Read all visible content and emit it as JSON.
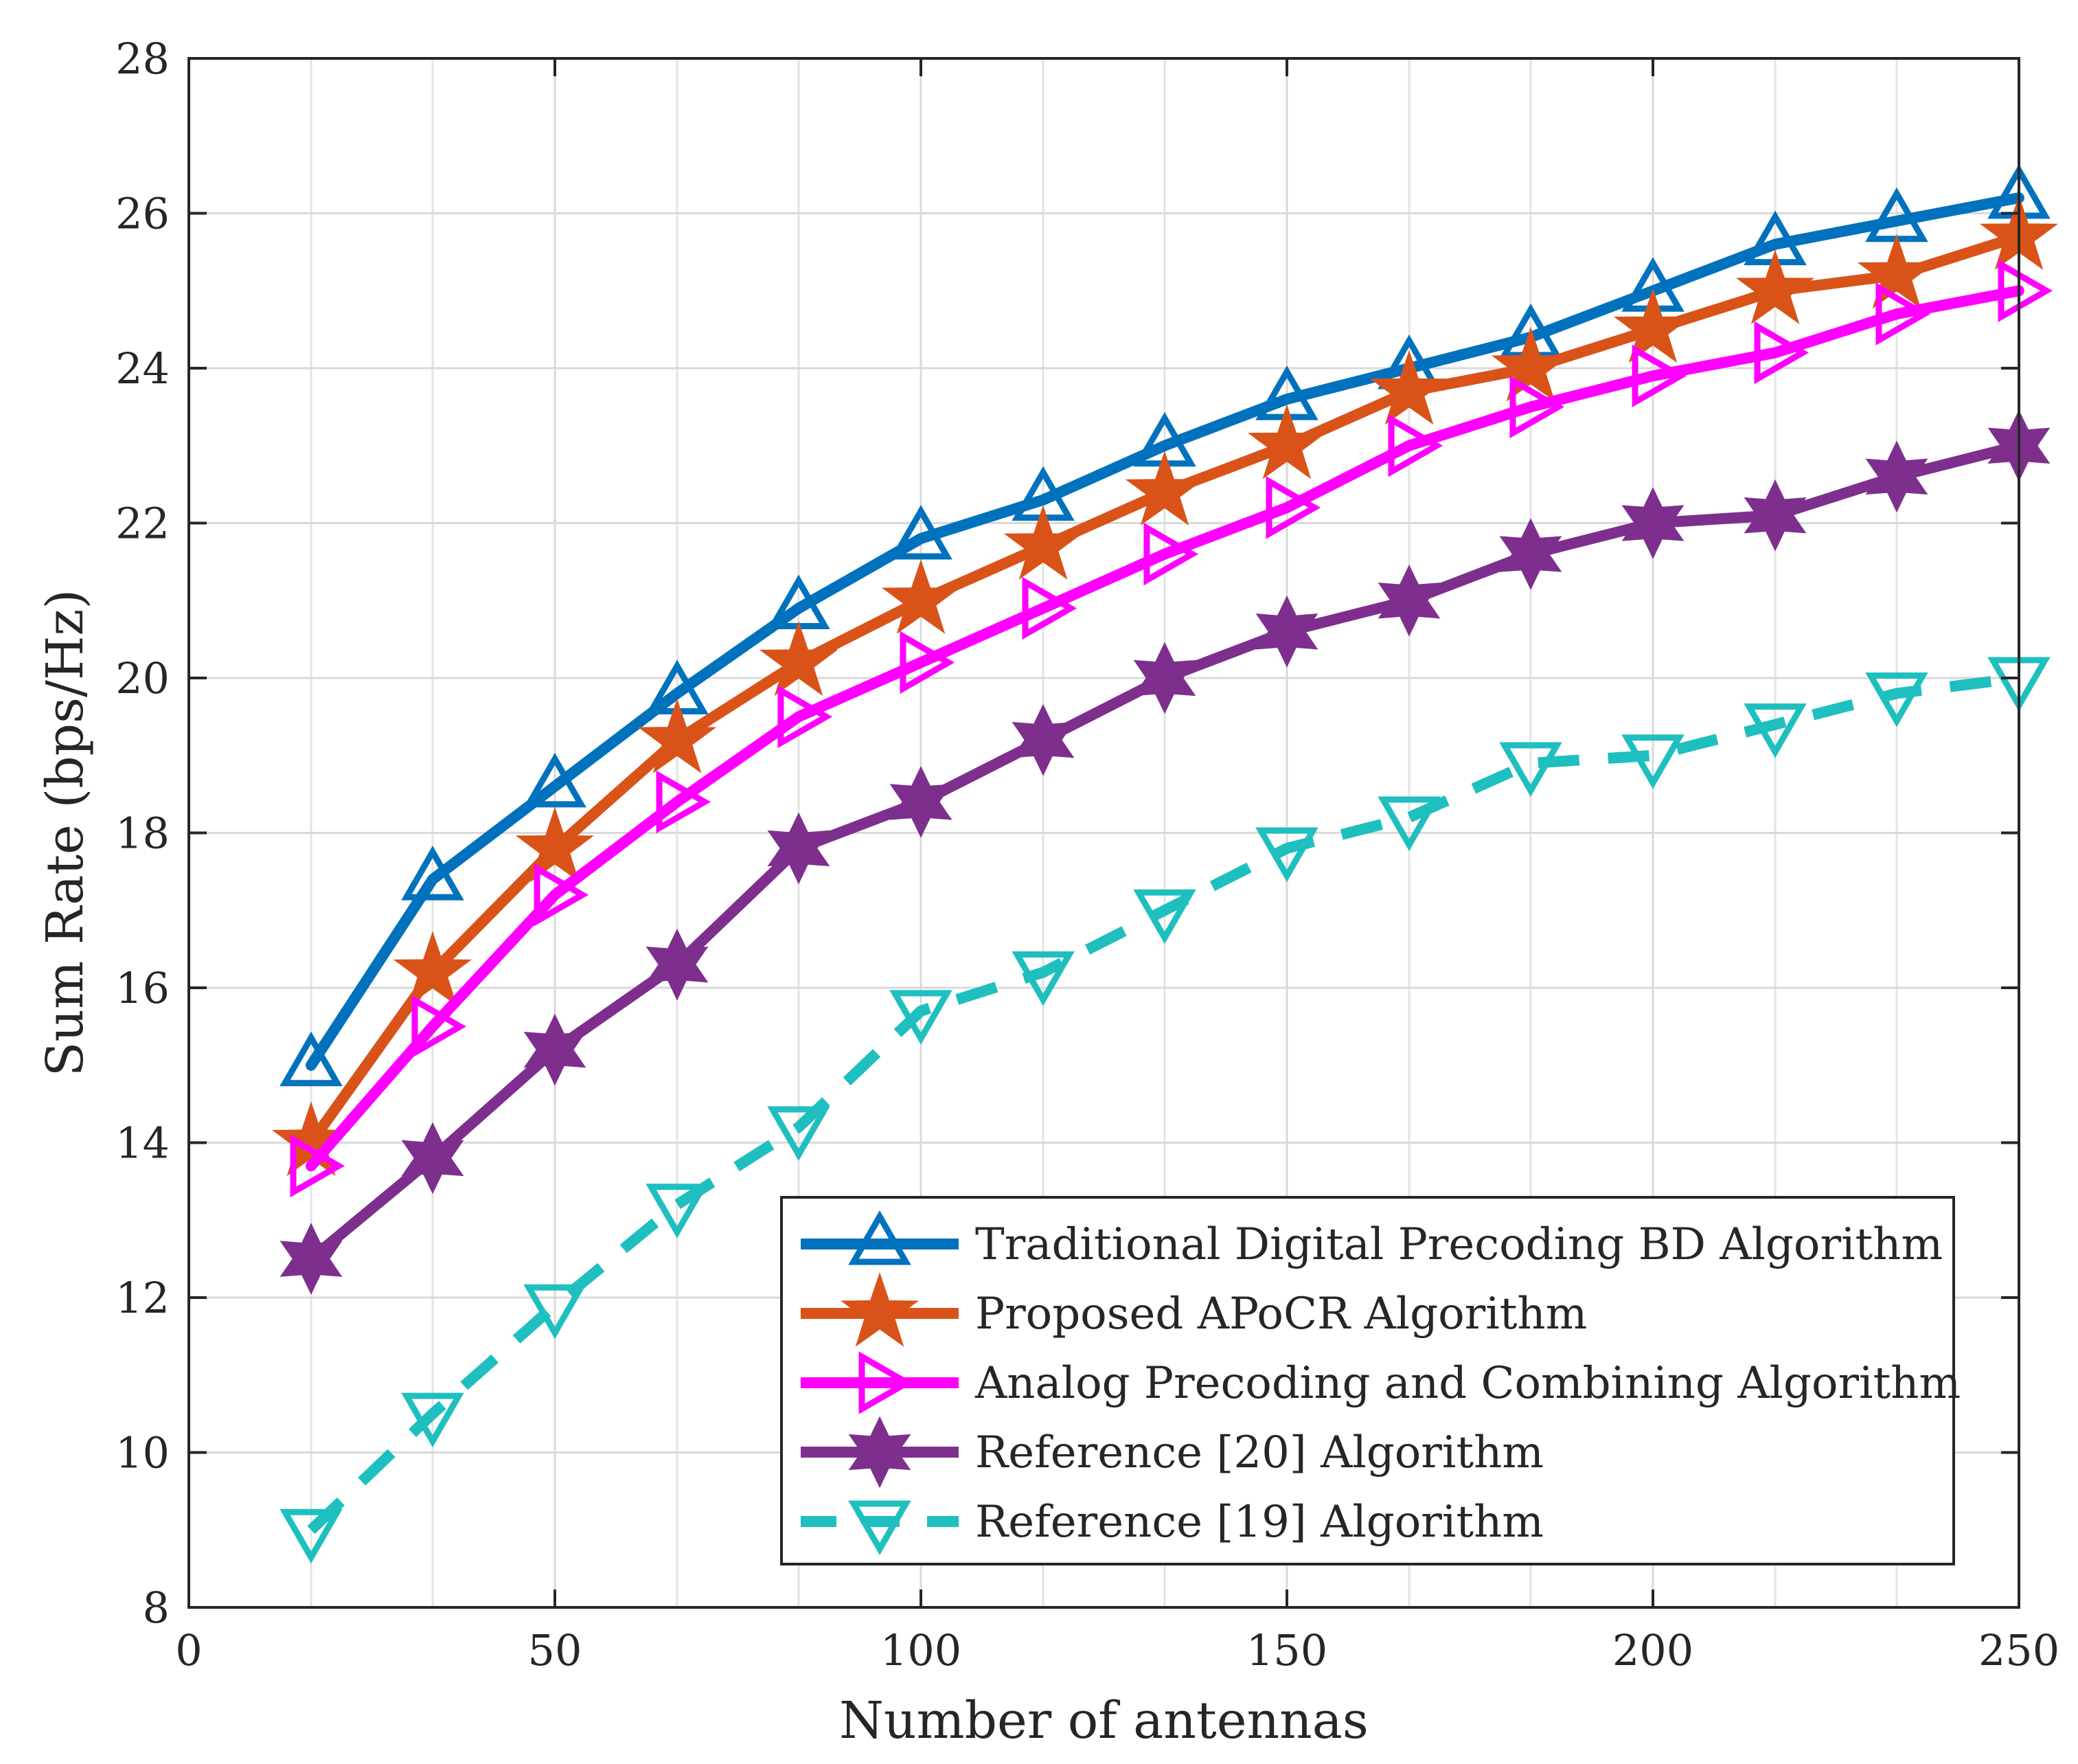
{
  "chart_data": {
    "type": "line",
    "title": "",
    "xlabel": "Number of antennas",
    "ylabel": "Sum Rate (bps/Hz)",
    "xlim": [
      0,
      250
    ],
    "ylim": [
      8,
      28
    ],
    "xticks": [
      0,
      50,
      100,
      150,
      200,
      250
    ],
    "yticks": [
      8,
      10,
      12,
      14,
      16,
      18,
      20,
      22,
      24,
      26,
      28
    ],
    "grid": true,
    "legend_position": "lower-right",
    "x": [
      16.7,
      33.3,
      50,
      66.7,
      83.3,
      100,
      116.7,
      133.3,
      150,
      166.7,
      183.3,
      200,
      216.7,
      233.3,
      250
    ],
    "series": [
      {
        "name": "Traditional Digital Precoding BD Algorithm",
        "color": "#0072BD",
        "marker": "triangle-up",
        "dashed": false,
        "values": [
          15.0,
          17.4,
          18.6,
          19.8,
          20.9,
          21.8,
          22.3,
          23.0,
          23.6,
          24.0,
          24.4,
          25.0,
          25.6,
          25.9,
          26.2
        ]
      },
      {
        "name": "Proposed APoCR Algorithm",
        "color": "#D95319",
        "marker": "pentagram",
        "dashed": false,
        "values": [
          14.0,
          16.2,
          17.8,
          19.2,
          20.2,
          21.0,
          21.7,
          22.4,
          23.0,
          23.7,
          24.0,
          24.5,
          25.0,
          25.2,
          25.7
        ]
      },
      {
        "name": "Analog Precoding and Combining Algorithm",
        "color": "#FF00FF",
        "marker": "triangle-right",
        "dashed": false,
        "values": [
          13.7,
          15.5,
          17.2,
          18.4,
          19.5,
          20.2,
          20.9,
          21.6,
          22.2,
          23.0,
          23.5,
          23.9,
          24.2,
          24.7,
          25.0
        ]
      },
      {
        "name": "Reference [20] Algorithm",
        "color": "#7E2F8E",
        "marker": "hexagram",
        "dashed": false,
        "values": [
          12.5,
          13.8,
          15.2,
          16.3,
          17.8,
          18.4,
          19.2,
          20.0,
          20.6,
          21.0,
          21.6,
          22.0,
          22.1,
          22.6,
          23.0
        ]
      },
      {
        "name": "Reference [19] Algorithm",
        "color": "#1FBFBF",
        "marker": "triangle-down",
        "dashed": true,
        "values": [
          9.0,
          10.5,
          11.9,
          13.2,
          14.2,
          15.7,
          16.2,
          17.0,
          17.8,
          18.2,
          18.9,
          19.0,
          19.4,
          19.8,
          20.0
        ]
      }
    ]
  }
}
